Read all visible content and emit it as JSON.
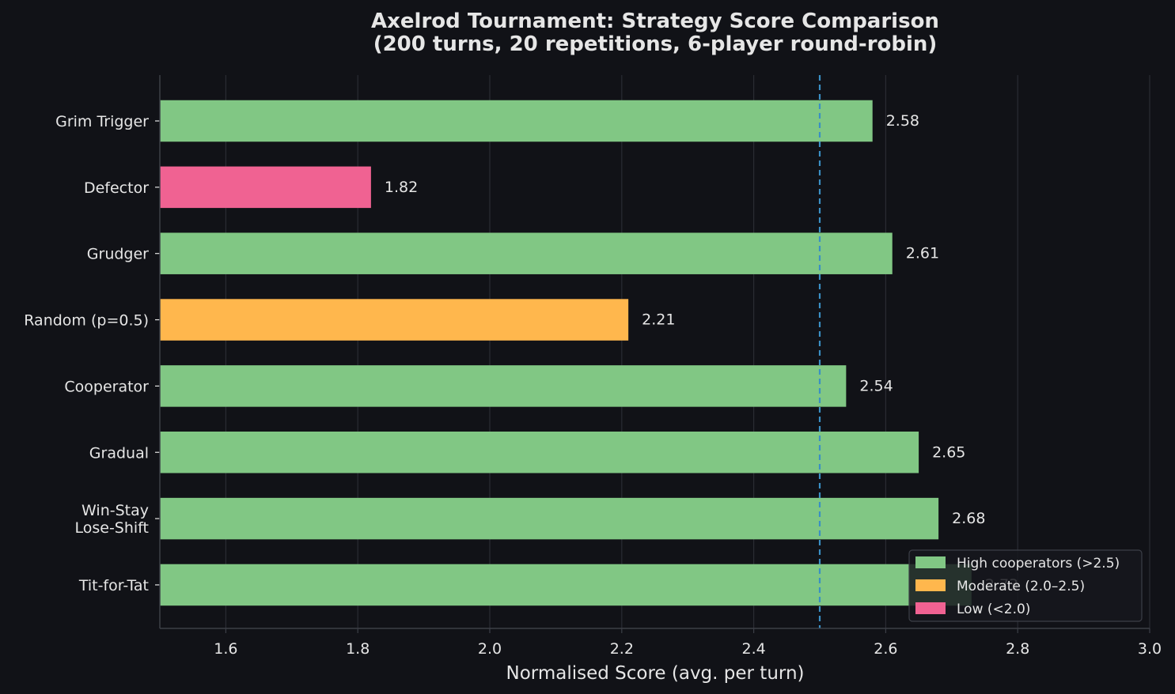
{
  "chart_data": {
    "type": "bar",
    "orientation": "horizontal",
    "title": "Axelrod Tournament: Strategy Score Comparison",
    "subtitle": "(200 turns, 20 repetitions, 6-player round-robin)",
    "xlabel": "Normalised Score (avg. per turn)",
    "ylabel": "",
    "xlim": [
      1.5,
      3.0
    ],
    "x_ticks": [
      "1.6",
      "1.8",
      "2.0",
      "2.2",
      "2.4",
      "2.6",
      "2.8",
      "3.0"
    ],
    "grid": "vertical",
    "reference_line": {
      "value": 2.5,
      "style": "dashed",
      "color": "#3a8fc4"
    },
    "categories": [
      {
        "label": "Grim Trigger",
        "label_lines": [
          "Grim Trigger"
        ],
        "value": 2.58,
        "value_label": "2.58",
        "group": "high"
      },
      {
        "label": "Defector",
        "label_lines": [
          "Defector"
        ],
        "value": 1.82,
        "value_label": "1.82",
        "group": "low"
      },
      {
        "label": "Grudger",
        "label_lines": [
          "Grudger"
        ],
        "value": 2.61,
        "value_label": "2.61",
        "group": "high"
      },
      {
        "label": "Random (p=0.5)",
        "label_lines": [
          "Random (p=0.5)"
        ],
        "value": 2.21,
        "value_label": "2.21",
        "group": "moderate"
      },
      {
        "label": "Cooperator",
        "label_lines": [
          "Cooperator"
        ],
        "value": 2.54,
        "value_label": "2.54",
        "group": "high"
      },
      {
        "label": "Gradual",
        "label_lines": [
          "Gradual"
        ],
        "value": 2.65,
        "value_label": "2.65",
        "group": "high"
      },
      {
        "label": "Win-Stay Lose-Shift",
        "label_lines": [
          "Win-Stay",
          "Lose-Shift"
        ],
        "value": 2.68,
        "value_label": "2.68",
        "group": "high"
      },
      {
        "label": "Tit-for-Tat",
        "label_lines": [
          "Tit-for-Tat"
        ],
        "value": 2.73,
        "value_label": "2.73",
        "group": "high"
      }
    ],
    "legend": {
      "placement": "bottom-right",
      "entries": [
        {
          "key": "high",
          "label": "High cooperators (>2.5)",
          "color": "#81c784"
        },
        {
          "key": "moderate",
          "label": "Moderate (2.0–2.5)",
          "color": "#ffb74d"
        },
        {
          "key": "low",
          "label": "Low (<2.0)",
          "color": "#f06292"
        }
      ]
    },
    "colors": {
      "background": "#111217",
      "text": "#e6e6e6",
      "grid": "#2a2c33",
      "axis": "#3c3f47",
      "legend_bg": "#16181d",
      "legend_border": "#3c3f47"
    }
  }
}
